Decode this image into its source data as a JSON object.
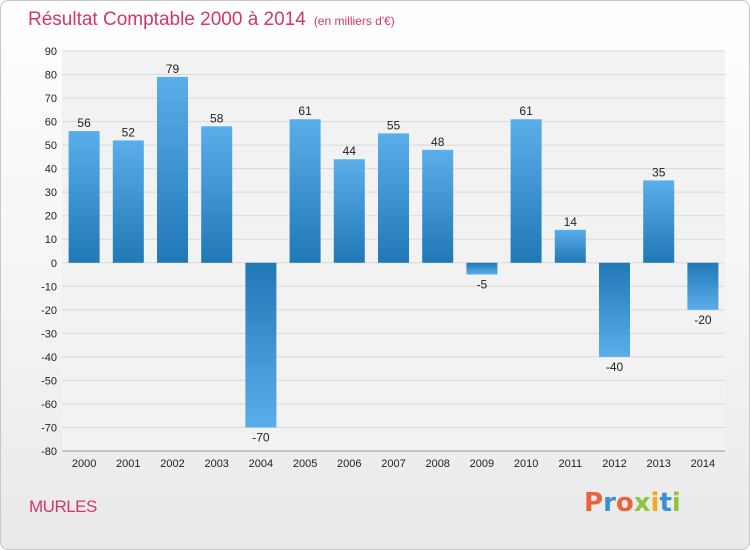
{
  "header": {
    "title": "Résultat Comptable 2000 à 2014",
    "subtitle": "(en milliers d'€)"
  },
  "footer": {
    "town": "MURLES",
    "logo_text": "Proxiti",
    "logo_colors": [
      "#e8643c",
      "#3b8fd3",
      "#e8643c",
      "#8cc63f",
      "#f5a623",
      "#3b8fd3",
      "#8cc63f"
    ]
  },
  "colors": {
    "title": "#d1376a",
    "bar_light": "#5aaeea",
    "bar_dark": "#1f77b4",
    "grid": "#d9d9d9",
    "plot_bg": "#f2f2f2"
  },
  "chart_data": {
    "type": "bar",
    "categories": [
      "2000",
      "2001",
      "2002",
      "2003",
      "2004",
      "2005",
      "2006",
      "2007",
      "2008",
      "2009",
      "2010",
      "2011",
      "2012",
      "2013",
      "2014"
    ],
    "values": [
      56,
      52,
      79,
      58,
      -70,
      61,
      44,
      55,
      48,
      -5,
      61,
      14,
      -40,
      35,
      -20
    ],
    "ylim": [
      -80,
      90
    ],
    "yticks": [
      90,
      80,
      70,
      60,
      50,
      40,
      30,
      20,
      10,
      0,
      -10,
      -20,
      -30,
      -40,
      -50,
      -60,
      -70,
      -80
    ],
    "grid": true,
    "legend": "none"
  }
}
